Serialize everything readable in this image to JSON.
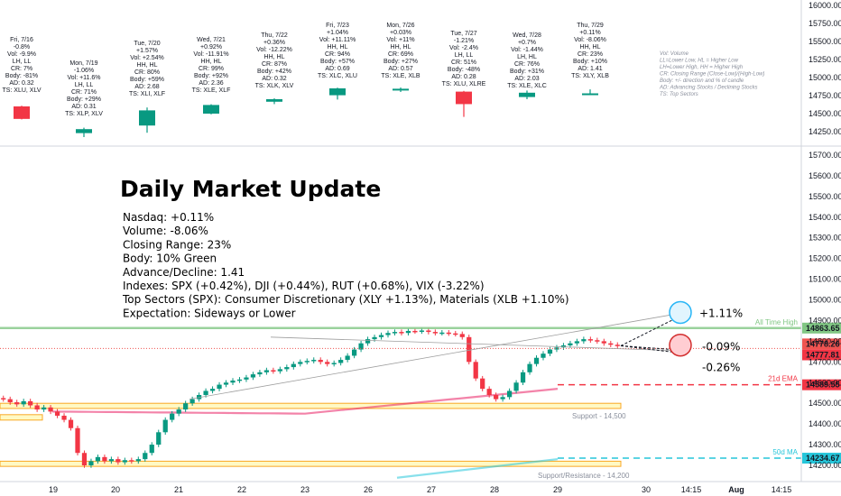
{
  "chart_data": {
    "type": "candlestick",
    "title": "Daily Market Update",
    "summary_lines": [
      "Nasdaq: +0.11%",
      "Volume: -8.06%",
      "Closing Range: 23%",
      "Body: 10% Green",
      "Advance/Decline: 1.41",
      "Indexes: SPX (+0.42%), DJI (+0.44%), RUT (+0.68%), VIX (-3.22%)",
      "Top Sectors (SPX): Consumer Discretionary (XLY +1.13%), Materials (XLB +1.10%)",
      "Expectation: Sideways or Lower"
    ],
    "daily_summaries": [
      {
        "lines": [
          "Fri, 7/16",
          "-0.8%",
          "Vol: -9.9%",
          "LH, LL",
          "CR: 7%",
          "Body: -81%",
          "AD: 0.32",
          "TS: XLU, XLV"
        ],
        "candle": {
          "open": 14600,
          "close": 14427,
          "high": 14610,
          "low": 14420
        }
      },
      {
        "lines": [
          "Mon, 7/19",
          "-1.06%",
          "Vol: +11.6%",
          "LH, LL",
          "CR: 71%",
          "Body: +29%",
          "AD: 0.31",
          "TS: XLP, XLV"
        ],
        "candle": {
          "open": 14230,
          "close": 14285,
          "high": 14305,
          "low": 14175
        }
      },
      {
        "lines": [
          "Tue, 7/20",
          "+1.57%",
          "Vol: +2.54%",
          "HH, HL",
          "CR: 80%",
          "Body: +59%",
          "AD: 2.68",
          "TS: XLI, XLF"
        ],
        "candle": {
          "open": 14335,
          "close": 14545,
          "high": 14585,
          "low": 14235
        }
      },
      {
        "lines": [
          "Wed, 7/21",
          "+0.92%",
          "Vol: -11.91%",
          "HH, HL",
          "CR: 99%",
          "Body: +92%",
          "AD: 2.36",
          "TS: XLE, XLF"
        ],
        "candle": {
          "open": 14500,
          "close": 14620,
          "high": 14630,
          "low": 14490
        }
      },
      {
        "lines": [
          "Thu, 7/22",
          "+0.36%",
          "Vol: -12.22%",
          "HH, HL",
          "CR: 87%",
          "Body: +42%",
          "AD: 0.32",
          "TS: XLK, XLV"
        ],
        "candle": {
          "open": 14665,
          "close": 14700,
          "high": 14712,
          "low": 14632
        }
      },
      {
        "lines": [
          "Fri, 7/23",
          "+1.04%",
          "Vol: +11.11%",
          "HH, HL",
          "CR: 94%",
          "Body: +57%",
          "AD: 0.69",
          "TS: XLC, XLU"
        ],
        "candle": {
          "open": 14755,
          "close": 14850,
          "high": 14860,
          "low": 14695
        }
      },
      {
        "lines": [
          "Mon, 7/26",
          "+0.03%",
          "Vol: +11%",
          "HH, HL",
          "CR: 69%",
          "Body: +27%",
          "AD: 0.57",
          "TS: XLE, XLB"
        ],
        "candle": {
          "open": 14825,
          "close": 14845,
          "high": 14862,
          "low": 14800
        }
      },
      {
        "lines": [
          "Tue, 7/27",
          "-1.21%",
          "Vol: -2.4%",
          "LH, LL",
          "CR: 51%",
          "Body: -48%",
          "AD: 0.28",
          "TS: XLU, XLRE"
        ],
        "candle": {
          "open": 14805,
          "close": 14632,
          "high": 14815,
          "low": 14455
        }
      },
      {
        "lines": [
          "Wed, 7/28",
          "+0.7%",
          "Vol: -1.44%",
          "LH, HL",
          "CR: 76%",
          "Body: +31%",
          "AD: 2.03",
          "TS: XLE, XLC"
        ],
        "candle": {
          "open": 14730,
          "close": 14790,
          "high": 14820,
          "low": 14700
        }
      },
      {
        "lines": [
          "Thu, 7/29",
          "+0.11%",
          "Vol: -8.06%",
          "HH, HL",
          "CR: 23%",
          "Body: +10%",
          "AD: 1.41",
          "TS: XLY, XLB"
        ],
        "candle": {
          "open": 14774,
          "close": 14781,
          "high": 14836,
          "low": 14770
        }
      }
    ],
    "legend_lines": [
      "Vol: Volume",
      "LL=Lower Low, HL = Higher Low",
      "LH=Lower High, HH = Higher High",
      "CR: Closing Range (Close-Low)/(High-Low)",
      "Body: +/- direction and % of candle",
      "AD: Advancing Stocks / Declining Stocks",
      "TS: Top Sectors"
    ],
    "upper_axis": {
      "ticks": [
        16000,
        15750,
        15500,
        15250,
        15000,
        14750,
        14500,
        14250
      ],
      "labels": [
        "16000.00",
        "15750.00",
        "15500.00",
        "15250.00",
        "15000.00",
        "14750.00",
        "14500.00",
        "14250.00"
      ],
      "ylim": [
        14160,
        16050
      ]
    },
    "lower_axis": {
      "ticks": [
        15700,
        15600,
        15500,
        15400,
        15300,
        15200,
        15100,
        15000,
        14900,
        14800,
        14700,
        14600,
        14500,
        14400,
        14300,
        14200
      ],
      "labels": [
        "15700.00",
        "15600.00",
        "15500.00",
        "15400.00",
        "15300.00",
        "15200.00",
        "15100.00",
        "15000.00",
        "14900.00",
        "14800.00",
        "14700.00",
        "14600.00",
        "14500.00",
        "14400.00",
        "14300.00",
        "14200.00"
      ],
      "ylim": [
        14155,
        15760
      ]
    },
    "x_axis": {
      "labels": [
        "19",
        "20",
        "21",
        "22",
        "23",
        "26",
        "27",
        "28",
        "29",
        "30",
        "14:15",
        "Aug",
        "14:15"
      ]
    },
    "intraday_close": [
      14520,
      14505,
      14495,
      14510,
      14490,
      14470,
      14480,
      14460,
      14440,
      14420,
      14380,
      14260,
      14200,
      14220,
      14240,
      14220,
      14230,
      14215,
      14225,
      14220,
      14230,
      14260,
      14300,
      14360,
      14420,
      14450,
      14470,
      14500,
      14520,
      14540,
      14560,
      14570,
      14590,
      14600,
      14610,
      14615,
      14625,
      14640,
      14650,
      14660,
      14655,
      14665,
      14675,
      14690,
      14700,
      14705,
      14710,
      14700,
      14690,
      14695,
      14710,
      14730,
      14760,
      14790,
      14810,
      14820,
      14830,
      14840,
      14845,
      14840,
      14850,
      14848,
      14852,
      14845,
      14840,
      14842,
      14838,
      14835,
      14820,
      14700,
      14620,
      14570,
      14540,
      14520,
      14530,
      14560,
      14600,
      14650,
      14690,
      14720,
      14740,
      14760,
      14770,
      14780,
      14790,
      14800,
      14810,
      14805,
      14800,
      14790,
      14783,
      14778
    ],
    "levels": [
      {
        "label": "All Time High",
        "price": 14863.65,
        "price_label": "14863.65",
        "color": "#81c784"
      },
      {
        "label": "",
        "price": 14778.26,
        "price_label": "14778.26",
        "color": "#ef5350"
      },
      {
        "label": "",
        "price": 14777.81,
        "price_label": "14777.81",
        "color": "#f23645"
      },
      {
        "label": "21d EMA",
        "price": 14589.55,
        "price_label": "14589.55",
        "color": "#f23645"
      },
      {
        "label": "50d MA",
        "price": 14234.67,
        "price_label": "14234.67",
        "color": "#26c6da"
      }
    ],
    "zones": [
      {
        "label": "Support - 14,500",
        "low": 14475,
        "high": 14500
      },
      {
        "label": "Support/Resistance - 14,200",
        "low": 14195,
        "high": 14220
      }
    ],
    "targets": [
      {
        "label": "+1.11%",
        "price": 14935,
        "color": "#29b6f6"
      },
      {
        "label": "-0.09%",
        "price": 14768
      },
      {
        "label": "-0.26%",
        "price": 14742,
        "color": "#d32f2f"
      }
    ],
    "colors": {
      "up": "#089981",
      "down": "#f23645",
      "ema": "#e91e63",
      "ma": "#26c6da",
      "zone_fill": "#fff9c4",
      "zone_border": "#f9a825"
    }
  }
}
